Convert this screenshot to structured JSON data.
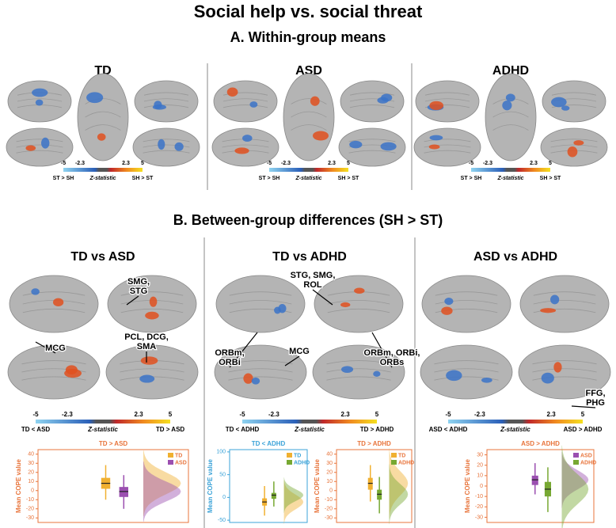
{
  "title": "Social help vs. social threat",
  "section_a": {
    "title": "A. Within-group means",
    "panels": [
      {
        "title": "TD"
      },
      {
        "title": "ASD"
      },
      {
        "title": "ADHD"
      }
    ],
    "colorbar": {
      "ticks": [
        -5,
        -2.3,
        2.3,
        5
      ],
      "left": "ST > SH",
      "center": "Z-statistic",
      "right": "SH > ST"
    }
  },
  "section_b": {
    "title": "B. Between-group differences (SH > ST)",
    "panels": [
      {
        "title": "TD vs ASD",
        "annotations": [
          [
            "SMG,",
            "STG"
          ],
          [
            "MCG"
          ],
          [
            "PCL, DCG,",
            "SMA"
          ]
        ],
        "colorbar": {
          "ticks": [
            -5,
            -2.3,
            2.3,
            5
          ],
          "left": "TD < ASD",
          "center": "Z-statistic",
          "right": "TD > ASD"
        },
        "plots": [
          {
            "title": "TD > ASD",
            "color": "#e8743b",
            "ylabel": "Mean COPE value",
            "ylim": [
              -35,
              45
            ],
            "yticks": [
              -30,
              -20,
              -10,
              0,
              10,
              20,
              30,
              40
            ],
            "groups": [
              {
                "name": "TD",
                "color": "#f0b030",
                "q1": 2,
                "median": 8,
                "q3": 14,
                "whiskers": [
                  -10,
                  28
                ]
              },
              {
                "name": "ASD",
                "color": "#9b4fb0",
                "q1": -7,
                "median": -1,
                "q3": 4,
                "whiskers": [
                  -20,
                  17
                ]
              }
            ]
          }
        ]
      },
      {
        "title": "TD vs ADHD",
        "annotations": [
          [
            "STG, SMG,",
            "ROL"
          ],
          [
            "ORBm,",
            "ORBi"
          ],
          [
            "MCG"
          ],
          [
            "ORBm, ORBi,",
            "ORBs"
          ]
        ],
        "colorbar": {
          "ticks": [
            -5,
            -2.3,
            2.3,
            5
          ],
          "left": "TD < ADHD",
          "center": "Z-statistic",
          "right": "TD > ADHD"
        },
        "plots": [
          {
            "title": "TD < ADHD",
            "color": "#3ba3d8",
            "ylabel": "Mean COPE value",
            "ylim": [
              -55,
              105
            ],
            "yticks": [
              -50,
              0,
              50,
              100
            ],
            "groups": [
              {
                "name": "TD",
                "color": "#f0b030",
                "q1": -18,
                "median": -10,
                "q3": -2,
                "whiskers": [
                  -40,
                  25
                ]
              },
              {
                "name": "ADHD",
                "color": "#77a832",
                "q1": -3,
                "median": 5,
                "q3": 10,
                "whiskers": [
                  -20,
                  35
                ]
              }
            ]
          },
          {
            "title": "TD > ADHD",
            "color": "#e8743b",
            "ylabel": "Mean COPE value",
            "ylim": [
              -35,
              45
            ],
            "yticks": [
              -30,
              -20,
              -10,
              0,
              10,
              20,
              30,
              40
            ],
            "groups": [
              {
                "name": "TD",
                "color": "#f0b030",
                "q1": 1,
                "median": 8,
                "q3": 14,
                "whiskers": [
                  -12,
                  28
                ]
              },
              {
                "name": "ADHD",
                "color": "#77a832",
                "q1": -10,
                "median": -4,
                "q3": 1,
                "whiskers": [
                  -25,
                  15
                ]
              }
            ]
          }
        ]
      },
      {
        "title": "ASD vs ADHD",
        "annotations": [
          [
            "FFG,",
            "PHG"
          ]
        ],
        "colorbar": {
          "ticks": [
            -5,
            -2.3,
            2.3,
            5
          ],
          "left": "ASD < ADHD",
          "center": "Z-statistic",
          "right": "ASD > ADHD"
        },
        "plots": [
          {
            "title": "ASD > ADHD",
            "color": "#e8743b",
            "ylabel": "Mean COPE value",
            "ylim": [
              -35,
              35
            ],
            "yticks": [
              -30,
              -20,
              -10,
              0,
              10,
              20,
              30
            ],
            "groups": [
              {
                "name": "ASD",
                "color": "#9b4fb0",
                "q1": 1,
                "median": 6,
                "q3": 10,
                "whiskers": [
                  -8,
                  22
                ]
              },
              {
                "name": "ADHD",
                "color": "#77a832",
                "q1": -10,
                "median": -3,
                "q3": 4,
                "whiskers": [
                  -25,
                  18
                ]
              }
            ]
          }
        ]
      }
    ]
  }
}
